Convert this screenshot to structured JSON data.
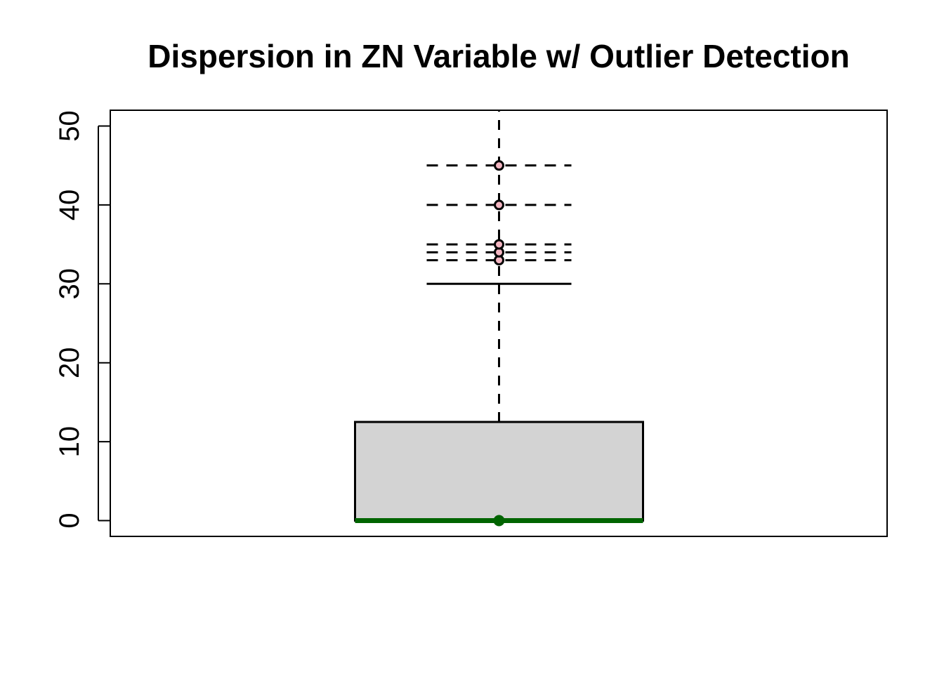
{
  "chart_data": {
    "type": "boxplot",
    "title": "Dispersion in ZN Variable w/ Outlier Detection",
    "xlabel": "",
    "ylabel": "",
    "ylim": [
      -2,
      52
    ],
    "yticks": [
      0,
      10,
      20,
      30,
      40,
      50
    ],
    "tick_labels": [
      "0",
      "10",
      "20",
      "30",
      "40",
      "50"
    ],
    "box": {
      "min": 0,
      "q1": 0,
      "median": 0,
      "q3": 12.5,
      "whisker_high": 30,
      "upper_limit": 52
    },
    "outlier_lines": [
      33,
      34,
      35,
      40,
      45
    ],
    "outliers": [
      33,
      34,
      35,
      40,
      45
    ],
    "colors": {
      "box_fill": "#d3d3d3",
      "median": "#006400",
      "outlier_fill": "#f4b6c2",
      "stroke": "#000000"
    },
    "grid": false
  }
}
